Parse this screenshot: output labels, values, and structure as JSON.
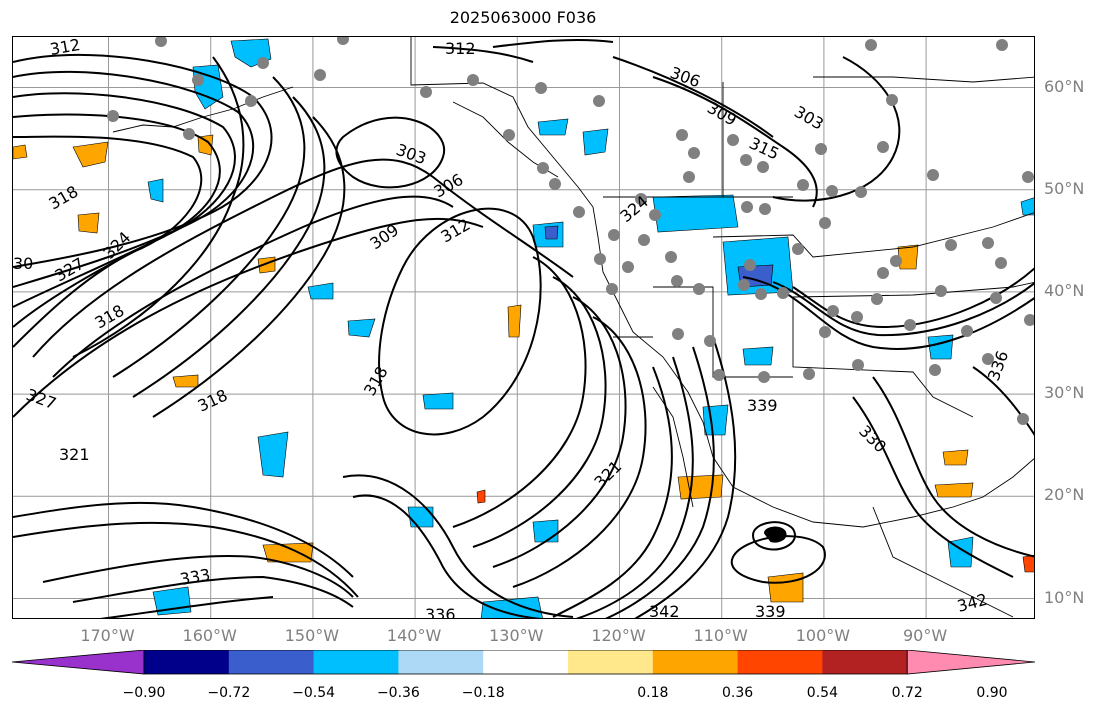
{
  "title": "2025063000 F036",
  "map": {
    "lat_labels": [
      {
        "text": "60°N",
        "lat": 60
      },
      {
        "text": "50°N",
        "lat": 50
      },
      {
        "text": "40°N",
        "lat": 40
      },
      {
        "text": "30°N",
        "lat": 30
      },
      {
        "text": "20°N",
        "lat": 20
      },
      {
        "text": "10°N",
        "lat": 10
      }
    ],
    "lon_labels": [
      {
        "text": "170°W",
        "lon": -170
      },
      {
        "text": "160°W",
        "lon": -160
      },
      {
        "text": "150°W",
        "lon": -150
      },
      {
        "text": "140°W",
        "lon": -140
      },
      {
        "text": "130°W",
        "lon": -130
      },
      {
        "text": "120°W",
        "lon": -120
      },
      {
        "text": "110°W",
        "lon": -110
      },
      {
        "text": "100°W",
        "lon": -100
      },
      {
        "text": "90°W",
        "lon": -90
      }
    ],
    "contour_labels": [
      {
        "text": "312"
      },
      {
        "text": "312"
      },
      {
        "text": "306"
      },
      {
        "text": "309"
      },
      {
        "text": "303"
      },
      {
        "text": "315"
      },
      {
        "text": "303"
      },
      {
        "text": "306"
      },
      {
        "text": "309"
      },
      {
        "text": "312"
      },
      {
        "text": "318"
      },
      {
        "text": "324"
      },
      {
        "text": "327"
      },
      {
        "text": "30"
      },
      {
        "text": "318"
      },
      {
        "text": "318"
      },
      {
        "text": "327"
      },
      {
        "text": "318"
      },
      {
        "text": "321"
      },
      {
        "text": "321"
      },
      {
        "text": "339"
      },
      {
        "text": "330"
      },
      {
        "text": "336"
      },
      {
        "text": "333"
      },
      {
        "text": "336"
      },
      {
        "text": "342"
      },
      {
        "text": "339"
      },
      {
        "text": "342"
      },
      {
        "text": "324"
      }
    ]
  },
  "colorbar": {
    "colors": [
      "#9932cc",
      "#00008b",
      "#3a5fcd",
      "#00bfff",
      "#add8f6",
      "#ffffff",
      "#ffe78b",
      "#ffa500",
      "#ff4500",
      "#b22222",
      "#ff8bb0"
    ],
    "ticks": [
      "−0.90",
      "−0.72",
      "−0.54",
      "−0.36",
      "−0.18",
      "0.18",
      "0.36",
      "0.54",
      "0.72",
      "0.90"
    ]
  }
}
